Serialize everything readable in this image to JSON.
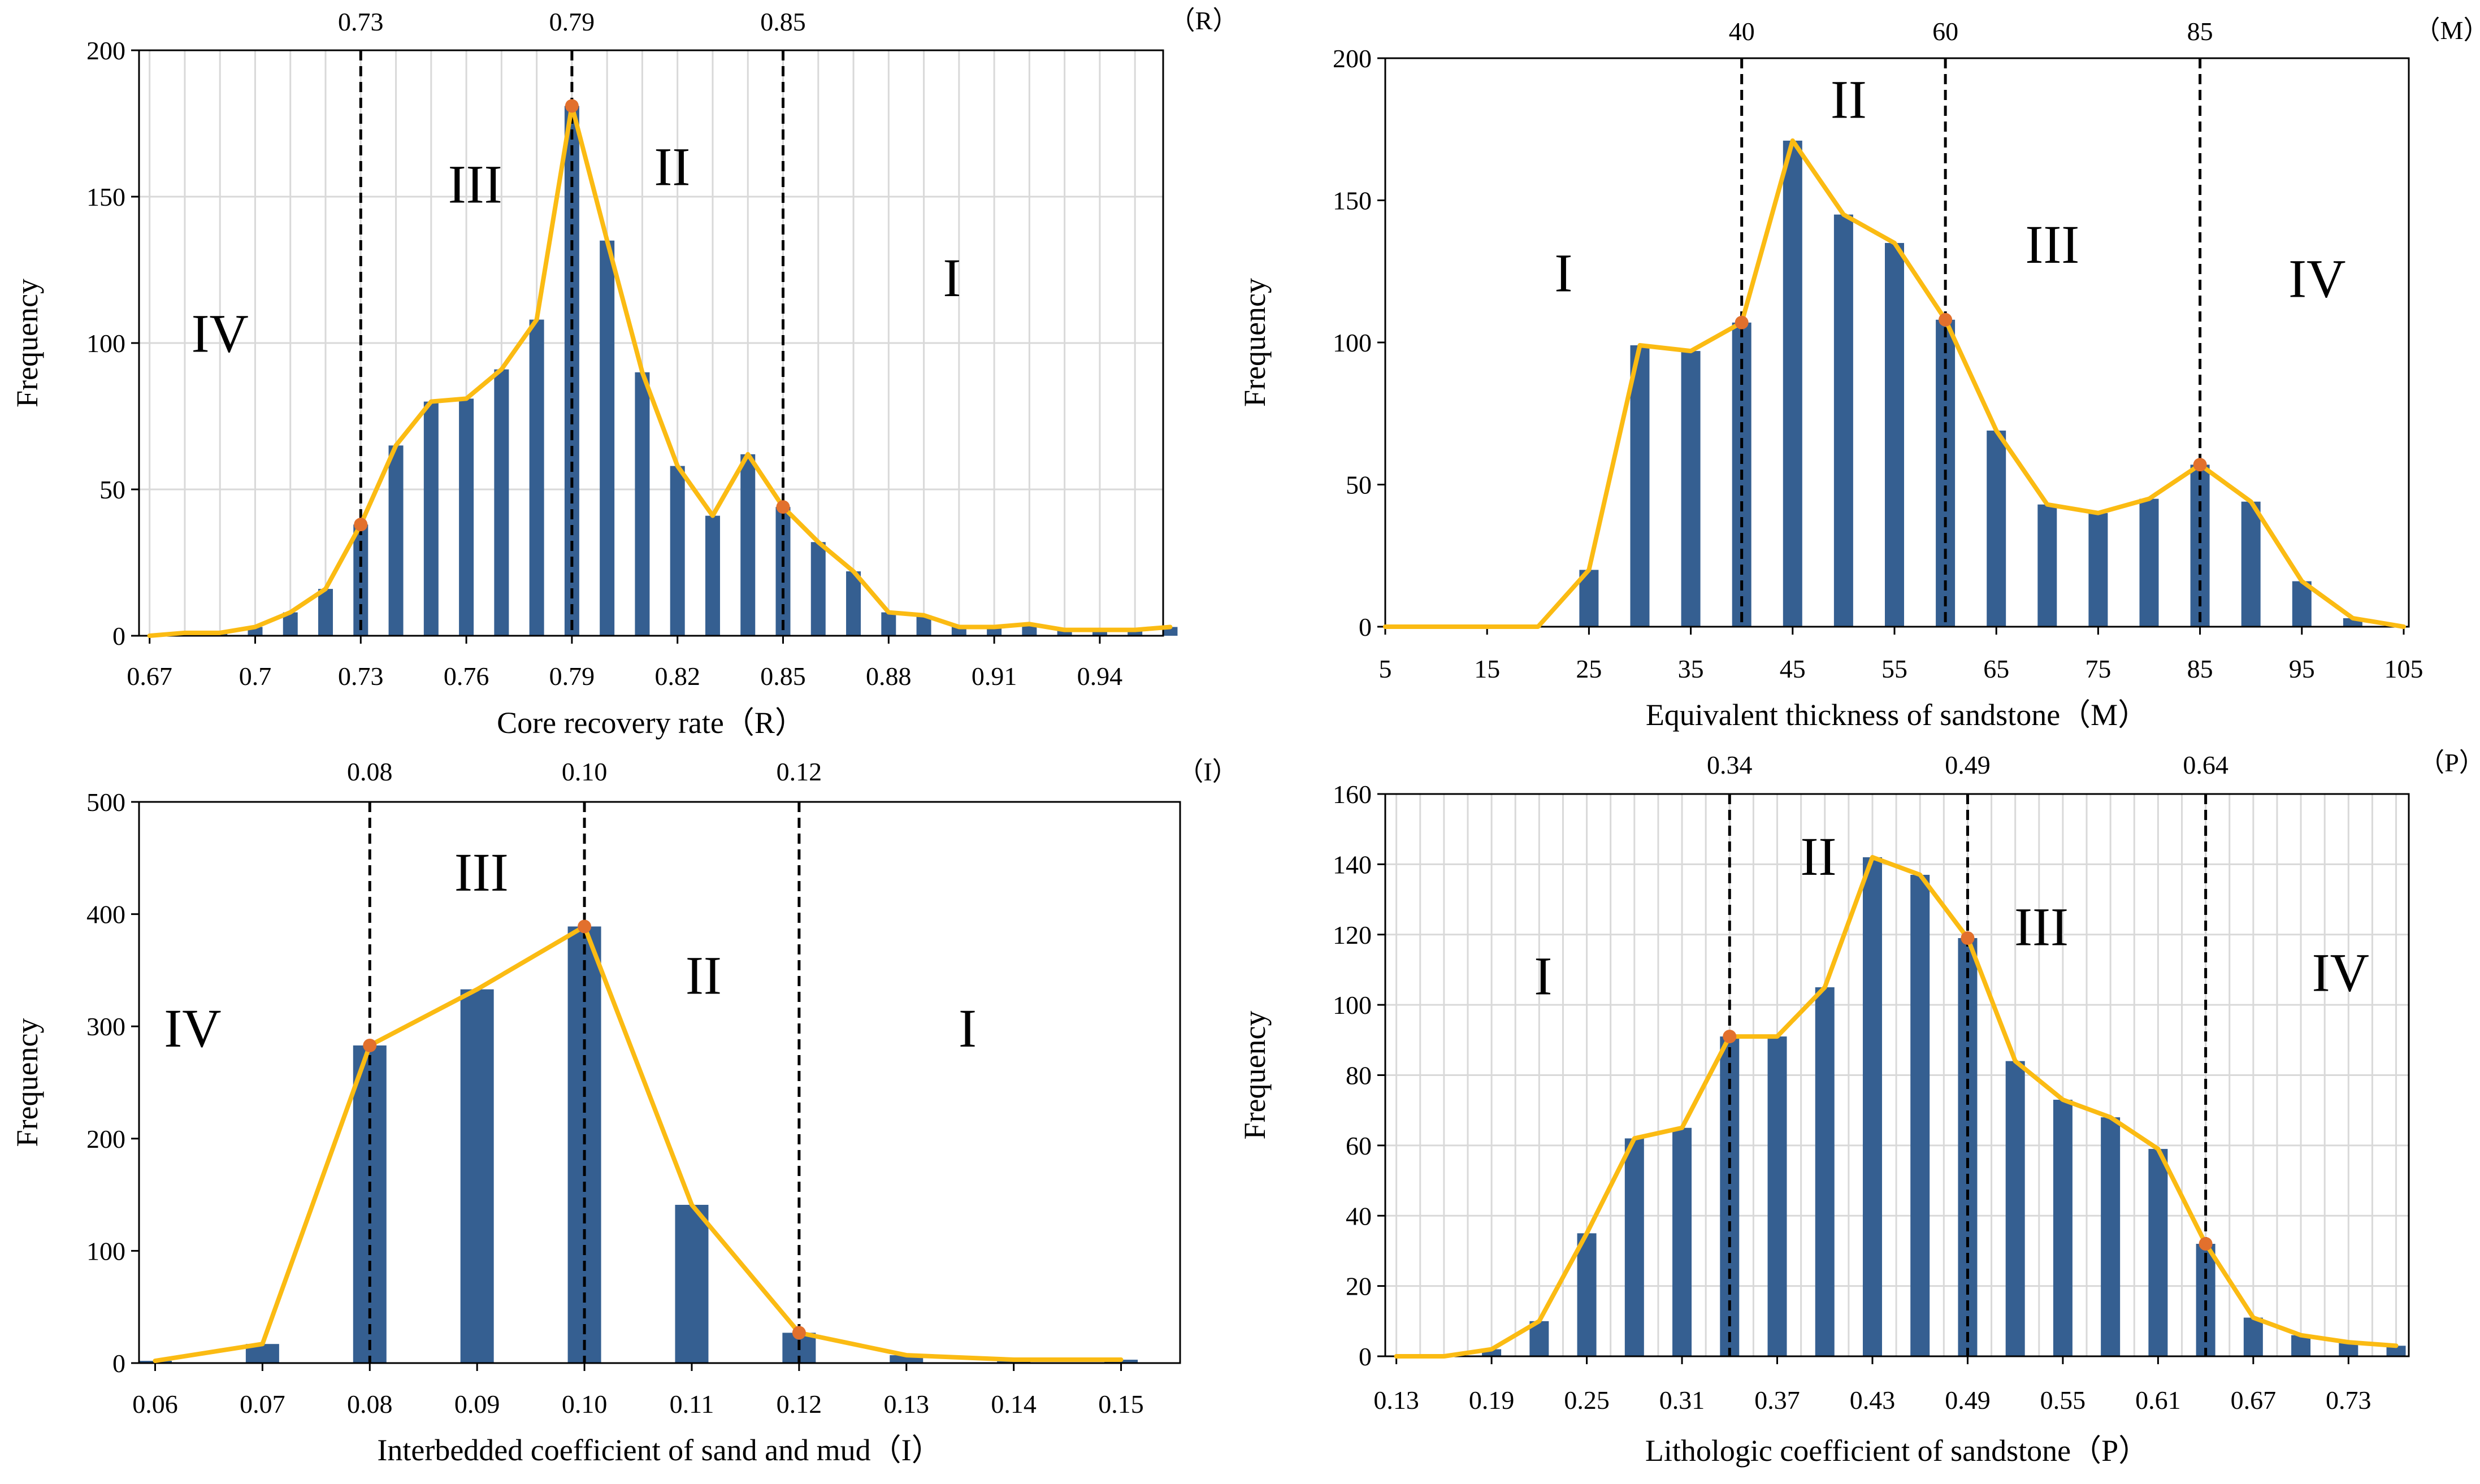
{
  "colors": {
    "bar": "#355f91",
    "line": "#fbbb13",
    "marker": "#e2702d",
    "grid": "#d9d9d9",
    "threshold": "#000000"
  },
  "chart_data": [
    {
      "type": "bar",
      "xlabel": "Core recovery rate（R）",
      "ylabel": "Frequency",
      "axis_tag": "（R）",
      "ylim": [
        0,
        200
      ],
      "yticks": [
        "0",
        "50",
        "100",
        "150",
        "200"
      ],
      "xtick_labels": [
        "0.67",
        "0.7",
        "0.73",
        "0.76",
        "0.79",
        "0.82",
        "0.85",
        "0.88",
        "0.91",
        "0.94"
      ],
      "grid": true,
      "categories": [
        0.67,
        0.68,
        0.69,
        0.7,
        0.71,
        0.72,
        0.73,
        0.74,
        0.75,
        0.76,
        0.77,
        0.78,
        0.79,
        0.8,
        0.81,
        0.82,
        0.83,
        0.84,
        0.85,
        0.86,
        0.87,
        0.88,
        0.89,
        0.9,
        0.91,
        0.92,
        0.93,
        0.94,
        0.95,
        0.96
      ],
      "values": [
        0,
        1,
        1,
        3,
        8,
        16,
        38,
        65,
        80,
        81,
        91,
        108,
        181,
        135,
        90,
        58,
        41,
        62,
        44,
        32,
        22,
        8,
        7,
        3,
        3,
        4,
        2,
        2,
        2,
        3
      ],
      "line_values": [
        0,
        1,
        1,
        3,
        8,
        16,
        38,
        65,
        80,
        81,
        91,
        108,
        181,
        135,
        90,
        58,
        41,
        62,
        44,
        32,
        22,
        8,
        7,
        3,
        3,
        4,
        2,
        2,
        2,
        3
      ],
      "thresholds": [
        {
          "value": 0.73,
          "label": "0.73",
          "y": 38
        },
        {
          "value": 0.79,
          "label": "0.79",
          "y": 181
        },
        {
          "value": 0.85,
          "label": "0.85",
          "y": 44
        }
      ],
      "zones": [
        {
          "label": "IV",
          "x": 0.69,
          "y": 97
        },
        {
          "label": "III",
          "x": 0.7625,
          "y": 148
        },
        {
          "label": "II",
          "x": 0.8185,
          "y": 154
        },
        {
          "label": "I",
          "x": 0.898,
          "y": 116
        }
      ]
    },
    {
      "type": "bar",
      "xlabel": "Equivalent thickness of sandstone（M）",
      "ylabel": "Frequency",
      "axis_tag": "（M）",
      "ylim": [
        0,
        200
      ],
      "yticks": [
        "0",
        "50",
        "100",
        "150",
        "200"
      ],
      "xtick_labels": [
        "5",
        "15",
        "25",
        "35",
        "45",
        "55",
        "65",
        "75",
        "85",
        "95",
        "105"
      ],
      "grid": false,
      "categories": [
        5,
        10,
        15,
        20,
        25,
        30,
        35,
        40,
        45,
        50,
        55,
        60,
        65,
        70,
        75,
        80,
        85,
        90,
        95,
        100,
        105
      ],
      "values": [
        0,
        0,
        0,
        0,
        20,
        99,
        97,
        107,
        171,
        145,
        135,
        108,
        69,
        43,
        40,
        45,
        57,
        44,
        16,
        3,
        0
      ],
      "line_values": [
        0,
        0,
        0,
        0,
        20,
        99,
        97,
        107,
        171,
        145,
        135,
        108,
        69,
        43,
        40,
        45,
        57,
        44,
        16,
        3,
        0
      ],
      "thresholds": [
        {
          "value": 40,
          "label": "40",
          "y": 107
        },
        {
          "value": 60,
          "label": "60",
          "y": 108
        },
        {
          "value": 85,
          "label": "85",
          "y": 57
        }
      ],
      "zones": [
        {
          "label": "I",
          "x": 22.5,
          "y": 118
        },
        {
          "label": "II",
          "x": 50.5,
          "y": 179
        },
        {
          "label": "III",
          "x": 70.5,
          "y": 128
        },
        {
          "label": "IV",
          "x": 96.5,
          "y": 116
        }
      ]
    },
    {
      "type": "bar",
      "xlabel": "Interbedded coefficient of sand and mud（I）",
      "ylabel": "Frequency",
      "axis_tag": "（I）",
      "ylim": [
        0,
        500
      ],
      "yticks": [
        "0",
        "100",
        "200",
        "300",
        "400",
        "500"
      ],
      "xtick_labels": [
        "0.06",
        "0.07",
        "0.08",
        "0.09",
        "0.10",
        "0.11",
        "0.12",
        "0.13",
        "0.14",
        "0.15"
      ],
      "grid": false,
      "categories": [
        0.06,
        0.07,
        0.08,
        0.09,
        0.1,
        0.11,
        0.12,
        0.13,
        0.14,
        0.15
      ],
      "values": [
        2,
        17,
        283,
        333,
        389,
        141,
        27,
        7,
        3,
        3
      ],
      "line_values": [
        2,
        17,
        283,
        333,
        389,
        141,
        27,
        7,
        3,
        3
      ],
      "thresholds": [
        {
          "value": 0.08,
          "label": "0.08",
          "y": 283
        },
        {
          "value": 0.1,
          "label": "0.10",
          "y": 389
        },
        {
          "value": 0.12,
          "label": "0.12",
          "y": 27
        }
      ],
      "zones": [
        {
          "label": "IV",
          "x": 0.0635,
          "y": 282
        },
        {
          "label": "III",
          "x": 0.0904,
          "y": 421
        },
        {
          "label": "II",
          "x": 0.1111,
          "y": 329
        },
        {
          "label": "I",
          "x": 0.1357,
          "y": 282
        }
      ]
    },
    {
      "type": "bar",
      "xlabel": "Lithologic coefficient of sandstone（P）",
      "ylabel": "Frequency",
      "axis_tag": "（P）",
      "ylim": [
        0,
        160
      ],
      "yticks": [
        "0",
        "20",
        "40",
        "60",
        "80",
        "100",
        "120",
        "140",
        "160"
      ],
      "xtick_labels": [
        "0.13",
        "0.19",
        "0.25",
        "0.31",
        "0.37",
        "0.43",
        "0.49",
        "0.55",
        "0.61",
        "0.67",
        "0.73"
      ],
      "grid": true,
      "categories": [
        0.13,
        0.16,
        0.19,
        0.22,
        0.25,
        0.28,
        0.31,
        0.34,
        0.37,
        0.4,
        0.43,
        0.46,
        0.49,
        0.52,
        0.55,
        0.58,
        0.61,
        0.64,
        0.67,
        0.7,
        0.73,
        0.76
      ],
      "values": [
        0,
        0,
        2,
        10,
        35,
        62,
        65,
        91,
        91,
        105,
        142,
        137,
        119,
        84,
        73,
        68,
        59,
        32,
        11,
        6,
        4,
        3
      ],
      "line_values": [
        0,
        0,
        2,
        10,
        35,
        62,
        65,
        91,
        91,
        105,
        142,
        137,
        119,
        84,
        73,
        68,
        59,
        32,
        11,
        6,
        4,
        3
      ],
      "thresholds": [
        {
          "value": 0.34,
          "label": "0.34",
          "y": 91
        },
        {
          "value": 0.49,
          "label": "0.49",
          "y": 119
        },
        {
          "value": 0.64,
          "label": "0.64",
          "y": 32
        }
      ],
      "zones": [
        {
          "label": "I",
          "x": 0.2225,
          "y": 103
        },
        {
          "label": "II",
          "x": 0.396,
          "y": 137
        },
        {
          "label": "III",
          "x": 0.5365,
          "y": 117
        },
        {
          "label": "IV",
          "x": 0.725,
          "y": 104
        }
      ]
    }
  ]
}
